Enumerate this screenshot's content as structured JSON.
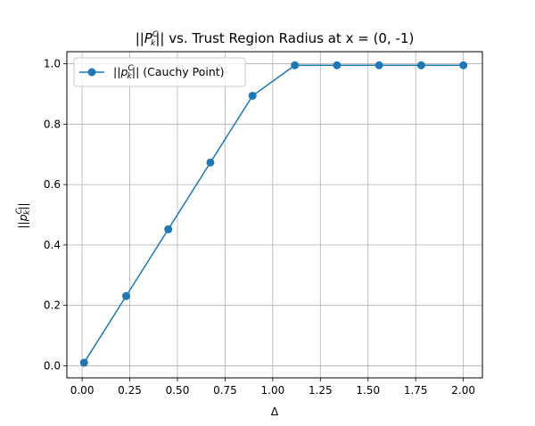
{
  "chart_data": {
    "type": "line",
    "title": {
      "pre": "||",
      "var": "P",
      "sup": "C",
      "sub": "k",
      "post": "|| vs. Trust Region Radius at x = (0, -1)"
    },
    "xlabel": "Δ",
    "ylabel": {
      "pre": "||",
      "var": "p",
      "sup": "C",
      "sub": "k",
      "post": "||"
    },
    "xlim": [
      -0.08,
      2.1
    ],
    "ylim": [
      -0.04,
      1.04
    ],
    "xticks": [
      0.0,
      0.25,
      0.5,
      0.75,
      1.0,
      1.25,
      1.5,
      1.75,
      2.0
    ],
    "xtick_labels": [
      "0.00",
      "0.25",
      "0.50",
      "0.75",
      "1.00",
      "1.25",
      "1.50",
      "1.75",
      "2.00"
    ],
    "yticks": [
      0.0,
      0.2,
      0.4,
      0.6,
      0.8,
      1.0
    ],
    "ytick_labels": [
      "0.0",
      "0.2",
      "0.4",
      "0.6",
      "0.8",
      "1.0"
    ],
    "grid": true,
    "legend_position": "upper-left",
    "series": [
      {
        "name": {
          "pre": "||",
          "var": "p",
          "sup": "C",
          "sub": "k",
          "post": "|| (Cauchy Point)"
        },
        "color": "#1f77b4",
        "marker": "circle",
        "x": [
          0.01,
          0.231,
          0.452,
          0.673,
          0.894,
          1.116,
          1.337,
          1.558,
          1.779,
          2.0
        ],
        "y": [
          0.01,
          0.231,
          0.452,
          0.673,
          0.894,
          0.995,
          0.995,
          0.995,
          0.995,
          0.995
        ]
      }
    ]
  }
}
